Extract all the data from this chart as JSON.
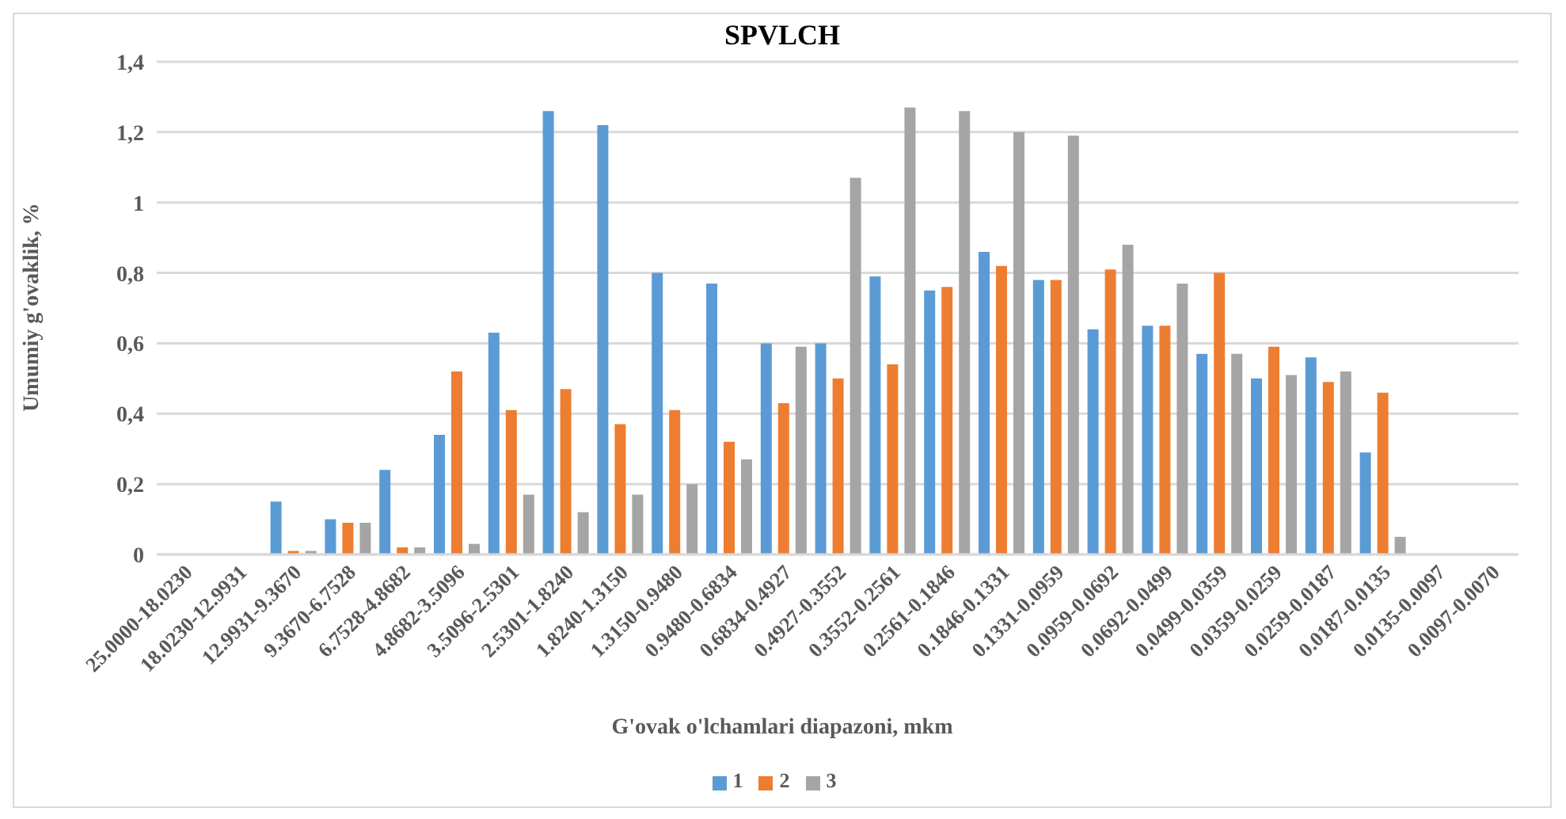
{
  "chart_data": {
    "type": "bar",
    "title": "SPVLCH",
    "xlabel": "G'ovak o'lchamlari diapazoni, mkm",
    "ylabel": "Umumiy g'ovaklik, %",
    "categories": [
      "25.0000-18.0230",
      "18.0230-12.9931",
      "12.9931-9.3670",
      "9.3670-6.7528",
      "6.7528-4.8682",
      "4.8682-3.5096",
      "3.5096-2.5301",
      "2.5301-1.8240",
      "1.8240-1.3150",
      "1.3150-0.9480",
      "0.9480-0.6834",
      "0.6834-0.4927",
      "0.4927-0.3552",
      "0.3552-0.2561",
      "0.2561-0.1846",
      "0.1846-0.1331",
      "0.1331-0.0959",
      "0.0959-0.0692",
      "0.0692-0.0499",
      "0.0499-0.0359",
      "0.0359-0.0259",
      "0.0259-0.0187",
      "0.0187-0.0135",
      "0.0135-0.0097",
      "0.0097-0.0070"
    ],
    "series": [
      {
        "name": "1",
        "color": "#5b9bd5",
        "values": [
          0,
          0,
          0.15,
          0.1,
          0.24,
          0.34,
          0.63,
          1.26,
          1.22,
          0.8,
          0.77,
          0.6,
          0.6,
          0.79,
          0.75,
          0.86,
          0.78,
          0.64,
          0.65,
          0.57,
          0.5,
          0.56,
          0.29,
          0,
          0
        ]
      },
      {
        "name": "2",
        "color": "#ed7d31",
        "values": [
          0,
          0,
          0.01,
          0.09,
          0.02,
          0.52,
          0.41,
          0.47,
          0.37,
          0.41,
          0.32,
          0.43,
          0.5,
          0.54,
          0.76,
          0.82,
          0.78,
          0.81,
          0.65,
          0.8,
          0.59,
          0.49,
          0.46,
          0,
          0
        ]
      },
      {
        "name": "3",
        "color": "#a5a5a5",
        "values": [
          0,
          0,
          0.01,
          0.09,
          0.02,
          0.03,
          0.17,
          0.12,
          0.17,
          0.2,
          0.27,
          0.59,
          1.07,
          1.27,
          1.26,
          1.2,
          1.19,
          0.88,
          0.77,
          0.57,
          0.51,
          0.52,
          0.05,
          0,
          0
        ]
      }
    ],
    "ylim": [
      0,
      1.4
    ],
    "yticks": [
      0,
      {
        "value": 0.2,
        "label": "0,2"
      },
      {
        "value": 0.4,
        "label": "0,4"
      },
      {
        "value": 0.6,
        "label": "0,6"
      },
      {
        "value": 0.8,
        "label": "0,8"
      },
      1,
      {
        "value": 1.2,
        "label": "1,2"
      },
      {
        "value": 1.4,
        "label": "1,4"
      }
    ],
    "grid": "y",
    "legend": "bottom"
  }
}
